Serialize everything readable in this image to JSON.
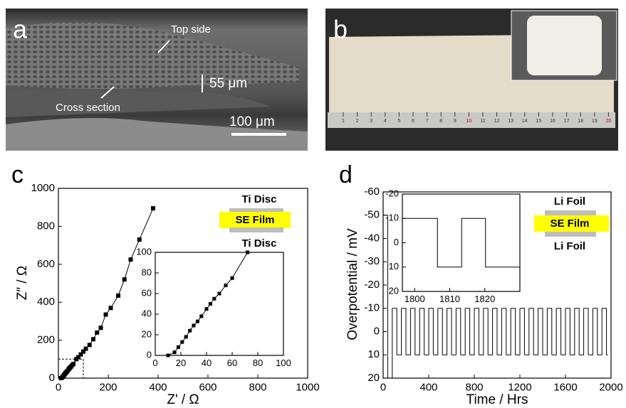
{
  "panel_a": {
    "label": "a",
    "top_side": "Top side",
    "thickness": "55 μm",
    "cross_section": "Cross section",
    "scale_bar": "100 μm"
  },
  "panel_b": {
    "label": "b",
    "ruler": [
      "1",
      "2",
      "3",
      "4",
      "5",
      "6",
      "7",
      "8",
      "9",
      "10",
      "11",
      "12",
      "13",
      "14",
      "15",
      "16",
      "17",
      "18",
      "19",
      "20"
    ]
  },
  "panel_c": {
    "label": "c",
    "stack": [
      "Ti Disc",
      "SE Film",
      "Ti Disc"
    ]
  },
  "panel_d": {
    "label": "d",
    "stack": [
      "Li Foil",
      "SE Film",
      "Li Foil"
    ]
  },
  "chart_data": [
    {
      "type": "line",
      "x_label": "Z' / Ω",
      "y_label": "Z″ / Ω",
      "xlim": [
        0,
        1000
      ],
      "ylim": [
        0,
        1000
      ],
      "xticks": [
        0,
        200,
        400,
        600,
        800,
        1000
      ],
      "yticks": [
        0,
        200,
        400,
        600,
        800,
        1000
      ],
      "color": "#000000",
      "marker": "square",
      "x": [
        10,
        15,
        18,
        21,
        24,
        27,
        30,
        33,
        36,
        40,
        43,
        46,
        50,
        55,
        60,
        72,
        80,
        90,
        100,
        110,
        125,
        140,
        155,
        170,
        190,
        210,
        240,
        265,
        290,
        325,
        380
      ],
      "values": [
        0,
        3,
        8,
        13,
        18,
        24,
        29,
        33,
        38,
        45,
        50,
        55,
        60,
        68,
        75,
        100,
        110,
        125,
        140,
        155,
        175,
        205,
        240,
        265,
        335,
        370,
        435,
        520,
        625,
        730,
        895
      ]
    },
    {
      "type": "line",
      "xlim": [
        0,
        100
      ],
      "ylim": [
        0,
        100
      ],
      "xticks": [
        0,
        20,
        40,
        60,
        80,
        100
      ],
      "yticks": [
        0,
        20,
        40,
        60,
        80,
        100
      ],
      "color": "#000000",
      "marker": "square",
      "x": [
        10,
        15,
        18,
        21,
        24,
        27,
        30,
        33,
        36,
        40,
        43,
        46,
        50,
        55,
        60,
        72
      ],
      "values": [
        0,
        3,
        8,
        13,
        18,
        24,
        29,
        33,
        38,
        45,
        50,
        55,
        60,
        68,
        75,
        100
      ]
    },
    {
      "type": "step",
      "x_label": "Time / Hrs",
      "y_label": "Overpotential / mV",
      "xlim": [
        0,
        2000
      ],
      "ylim": [
        -60,
        20
      ],
      "y_inverted": true,
      "xticks": [
        0,
        400,
        800,
        1200,
        1600,
        2000
      ],
      "yticks": [
        -60,
        -50,
        -40,
        -30,
        -20,
        -10,
        0,
        10,
        20
      ],
      "color": "#000000",
      "x": [
        0,
        40,
        80,
        120,
        160,
        200,
        240,
        280,
        320,
        360,
        400,
        440,
        480,
        520,
        560,
        600,
        640,
        680,
        720,
        760,
        800,
        840,
        880,
        920,
        960,
        1000,
        1040,
        1080,
        1120,
        1160,
        1200,
        1240,
        1280,
        1320,
        1360,
        1400,
        1440,
        1480,
        1520,
        1560,
        1600,
        1640,
        1680,
        1720,
        1760,
        1800,
        1840,
        1880,
        1920,
        1960
      ],
      "values": [
        -50,
        20,
        -10,
        10,
        -10,
        10,
        -10,
        10,
        -10,
        10,
        -10,
        10,
        -10,
        10,
        -10,
        10,
        -10,
        10,
        -10,
        10,
        -10,
        10,
        -10,
        10,
        -10,
        10,
        -10,
        10,
        -10,
        10,
        -10,
        10,
        -10,
        10,
        -10,
        10,
        -10,
        10,
        -10,
        10,
        -10,
        10,
        -10,
        10,
        -10,
        10,
        -10,
        10,
        -10,
        10
      ]
    },
    {
      "type": "line",
      "xlim": [
        1796.5,
        1830
      ],
      "ylim": [
        -20,
        20
      ],
      "y_inverted": true,
      "xticks": [
        1800,
        1810,
        1820
      ],
      "yticks": [
        -20,
        -10,
        0,
        10,
        20
      ],
      "color": "#000000",
      "x": [
        1796.5,
        1806.5,
        1806.5,
        1813.4,
        1813.4,
        1820.2,
        1820.2,
        1830
      ],
      "values": [
        -10,
        -10,
        10,
        10,
        -10,
        -10,
        10,
        10
      ]
    }
  ]
}
